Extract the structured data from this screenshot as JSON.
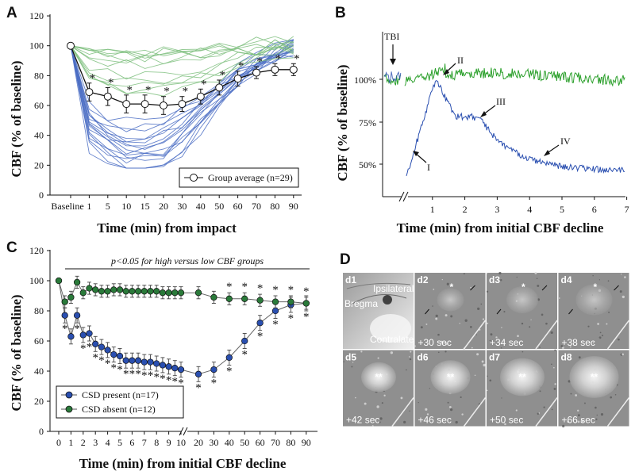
{
  "chart_data": [
    {
      "panel": "A",
      "type": "line",
      "title": "",
      "xlabel": "Time (min) from impact",
      "ylabel": "CBF (% of baseline)",
      "categories": [
        "Baseline",
        "1",
        "5",
        "10",
        "15",
        "20",
        "30",
        "40",
        "50",
        "60",
        "70",
        "80",
        "90"
      ],
      "yticks": [
        "0",
        "20",
        "40",
        "60",
        "80",
        "100",
        "120"
      ],
      "ylim": [
        0,
        120
      ],
      "series": [
        {
          "name": "Group average (n=29)",
          "values": [
            100,
            69,
            66,
            61,
            61,
            60,
            61,
            66,
            72,
            78,
            82,
            84,
            84
          ],
          "errors": [
            0,
            6,
            6,
            6,
            6,
            6,
            5,
            5,
            5,
            5,
            4,
            4,
            4
          ]
        }
      ],
      "significance": [
        "",
        "*",
        "*",
        "*",
        "*",
        "*",
        "*",
        "*",
        "*",
        "*",
        "*",
        "*",
        "*"
      ],
      "legend": "Group average (n=29)",
      "individual_traces": "29 individual animals (green: mild decline, blue: severe decline)"
    },
    {
      "panel": "B",
      "type": "line",
      "xlabel": "Time (min) from initial CBF decline",
      "ylabel": "CBF (% of baseline)",
      "xticks": [
        "1",
        "2",
        "3",
        "4",
        "5",
        "6",
        "7"
      ],
      "yticks": [
        "50%",
        "75%",
        "100%"
      ],
      "annotations": [
        "TBI",
        "I",
        "II",
        "III",
        "IV"
      ],
      "series": [
        {
          "name": "green trace",
          "color": "#2ca02c"
        },
        {
          "name": "blue trace",
          "color": "#2a4fb0"
        }
      ]
    },
    {
      "panel": "C",
      "type": "line",
      "title": "p<0.05 for high versus low CBF groups",
      "xlabel": "Time (min) from initial CBF decline",
      "ylabel": "CBF (% of baseline)",
      "xticks": [
        "0",
        "1",
        "2",
        "3",
        "4",
        "5",
        "6",
        "7",
        "8",
        "9",
        "10",
        "20",
        "30",
        "40",
        "50",
        "60",
        "70",
        "80",
        "90"
      ],
      "yticks": [
        "0",
        "20",
        "40",
        "60",
        "80",
        "100",
        "120"
      ],
      "ylim": [
        0,
        120
      ],
      "series": [
        {
          "name": "CSD present (n=17)",
          "color": "#2a4fb0",
          "x": [
            0,
            0.5,
            1,
            1.5,
            2,
            2.5,
            3,
            3.5,
            4,
            4.5,
            5,
            5.5,
            6,
            6.5,
            7,
            7.5,
            8,
            8.5,
            9,
            9.5,
            10,
            20,
            30,
            40,
            50,
            60,
            70,
            80,
            90
          ],
          "values": [
            100,
            77,
            63,
            77,
            64,
            65,
            58,
            56,
            54,
            51,
            50,
            47,
            47,
            47,
            46,
            46,
            45,
            44,
            43,
            42,
            41,
            38,
            41,
            49,
            60,
            72,
            80,
            84,
            85
          ]
        },
        {
          "name": "CSD absent (n=12)",
          "color": "#2a7a3a",
          "x": [
            0,
            0.5,
            1,
            1.5,
            2,
            2.5,
            3,
            3.5,
            4,
            4.5,
            5,
            5.5,
            6,
            6.5,
            7,
            7.5,
            8,
            8.5,
            9,
            9.5,
            10,
            20,
            30,
            40,
            50,
            60,
            70,
            80,
            90
          ],
          "values": [
            100,
            86,
            89,
            99,
            92,
            95,
            94,
            93,
            93,
            94,
            94,
            93,
            93,
            93,
            93,
            93,
            93,
            92,
            92,
            92,
            92,
            92,
            89,
            88,
            88,
            87,
            86,
            86,
            85
          ]
        }
      ],
      "legend": [
        "CSD present (n=17)",
        "CSD absent (n=12)"
      ]
    }
  ],
  "panelD": {
    "label": "D",
    "tiles": [
      {
        "id": "d1",
        "time": "",
        "labels": [
          "Ipsilateral",
          "Bregma",
          "Contralateral"
        ]
      },
      {
        "id": "d2",
        "time": "+30 sec"
      },
      {
        "id": "d3",
        "time": "+34 sec"
      },
      {
        "id": "d4",
        "time": "+38 sec"
      },
      {
        "id": "d5",
        "time": "+42 sec"
      },
      {
        "id": "d6",
        "time": "+46 sec"
      },
      {
        "id": "d7",
        "time": "+50 sec"
      },
      {
        "id": "d8",
        "time": "+66 sec"
      }
    ]
  },
  "panel_labels": {
    "a": "A",
    "b": "B",
    "c": "C",
    "d": "D"
  },
  "legend_a": "Group average (n=29)",
  "legend_c1": "CSD present (n=17)",
  "legend_c2": "CSD absent (n=12)",
  "sig_text_c": "p<0.05 for high versus low CBF groups",
  "xlabel_a": "Time (min) from impact",
  "xlabel_b": "Time (min) from initial CBF decline",
  "xlabel_c": "Time (min) from initial CBF decline",
  "ylabel_a": "CBF (% of baseline)",
  "ylabel_b": "CBF (% of baseline)",
  "ylabel_c": "CBF (% of baseline)",
  "b_annot": {
    "tbi": "TBI",
    "i": "I",
    "ii": "II",
    "iii": "III",
    "iv": "IV"
  },
  "b_yticks": [
    "50%",
    "75%",
    "100%"
  ]
}
